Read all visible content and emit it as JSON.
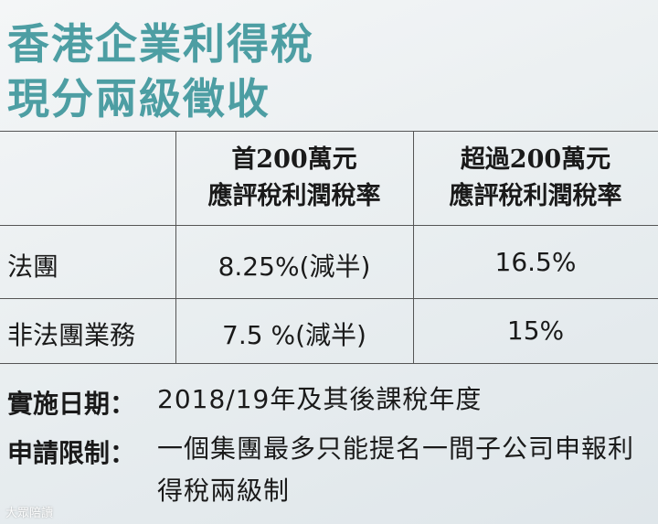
{
  "title": [
    "香港企業利得稅",
    "現分兩級徵收"
  ],
  "table": {
    "header": [
      [
        "首200萬元",
        "應評稅利潤稅率"
      ],
      [
        "超過200萬元",
        "應評稅利潤稅率"
      ]
    ],
    "rows": [
      [
        "法團",
        "8.25%(減半)",
        "16.5%"
      ],
      [
        "非法團業務",
        "7.5 %(減半)",
        "15%"
      ]
    ]
  },
  "notes": [
    {
      "label": "實施日期：",
      "text": "2018/19年及其後課稅年度"
    },
    {
      "label": "申請限制：",
      "text": "一個集團最多只能提名一間子公司申報利得稅兩級制"
    }
  ],
  "watermark": "大眾陪讀"
}
